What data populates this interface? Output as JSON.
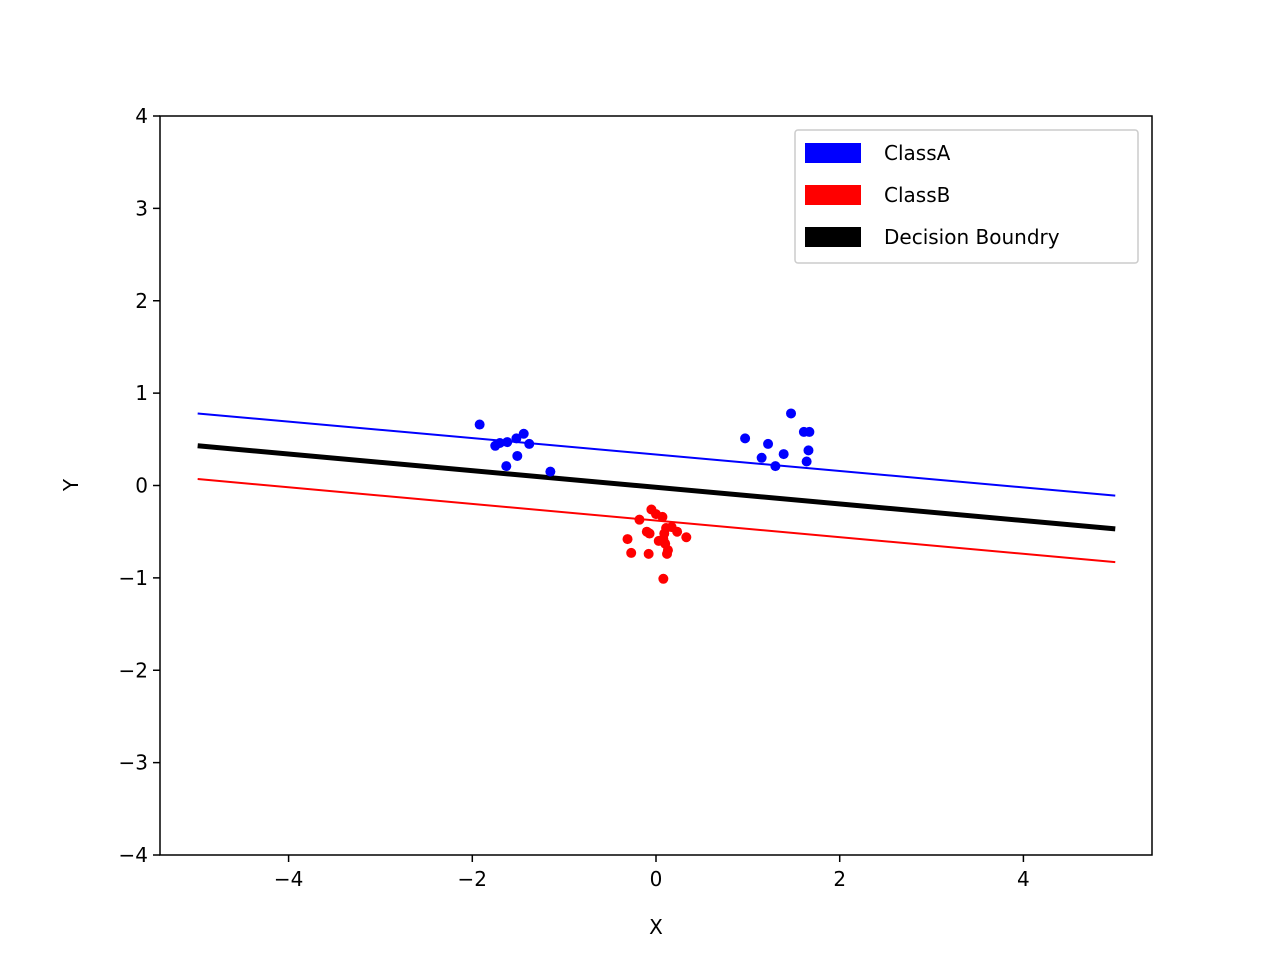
{
  "chart_data": {
    "type": "scatter",
    "xlabel": "X",
    "ylabel": "Y",
    "xlim": [
      -5.4,
      5.4
    ],
    "ylim": [
      -4,
      4
    ],
    "xticks": [
      -4,
      -2,
      0,
      2,
      4
    ],
    "yticks": [
      -4,
      -3,
      -2,
      -1,
      0,
      1,
      2,
      3,
      4
    ],
    "xtick_labels": [
      "−4",
      "−2",
      "0",
      "2",
      "4"
    ],
    "ytick_labels": [
      "−4",
      "−3",
      "−2",
      "−1",
      "0",
      "1",
      "2",
      "3",
      "4"
    ],
    "grid": false,
    "legend_position": "top-right",
    "legend": [
      {
        "label": "ClassA",
        "color": "#0000ff"
      },
      {
        "label": "ClassB",
        "color": "#ff0000"
      },
      {
        "label": "Decision Boundry",
        "color": "#000000"
      }
    ],
    "lines": [
      {
        "name": "ClassA",
        "color": "#0000ff",
        "width": "thin",
        "points": [
          [
            -4.99,
            0.78
          ],
          [
            5.0,
            -0.11
          ]
        ]
      },
      {
        "name": "Decision Boundry",
        "color": "#000000",
        "width": "thick",
        "points": [
          [
            -4.99,
            0.43
          ],
          [
            5.0,
            -0.47
          ]
        ]
      },
      {
        "name": "ClassB",
        "color": "#ff0000",
        "width": "thin",
        "points": [
          [
            -4.99,
            0.07
          ],
          [
            5.0,
            -0.83
          ]
        ]
      }
    ],
    "series": [
      {
        "name": "ClassA",
        "color": "#0000ff",
        "points": [
          [
            -1.92,
            0.66
          ],
          [
            -1.75,
            0.43
          ],
          [
            -1.7,
            0.46
          ],
          [
            -1.62,
            0.47
          ],
          [
            -1.63,
            0.21
          ],
          [
            -1.52,
            0.51
          ],
          [
            -1.51,
            0.32
          ],
          [
            -1.44,
            0.56
          ],
          [
            -1.38,
            0.45
          ],
          [
            -1.15,
            0.15
          ],
          [
            0.97,
            0.51
          ],
          [
            1.15,
            0.3
          ],
          [
            1.22,
            0.45
          ],
          [
            1.3,
            0.21
          ],
          [
            1.39,
            0.34
          ],
          [
            1.47,
            0.78
          ],
          [
            1.61,
            0.58
          ],
          [
            1.67,
            0.58
          ],
          [
            1.66,
            0.38
          ],
          [
            1.64,
            0.26
          ]
        ]
      },
      {
        "name": "ClassB",
        "color": "#ff0000",
        "points": [
          [
            -0.05,
            -0.26
          ],
          [
            0.0,
            -0.31
          ],
          [
            0.07,
            -0.34
          ],
          [
            -0.18,
            -0.37
          ],
          [
            0.11,
            -0.46
          ],
          [
            0.17,
            -0.45
          ],
          [
            0.23,
            -0.5
          ],
          [
            -0.1,
            -0.5
          ],
          [
            -0.07,
            -0.52
          ],
          [
            0.09,
            -0.52
          ],
          [
            0.08,
            -0.58
          ],
          [
            0.33,
            -0.56
          ],
          [
            0.03,
            -0.6
          ],
          [
            -0.31,
            -0.58
          ],
          [
            0.1,
            -0.63
          ],
          [
            0.13,
            -0.7
          ],
          [
            0.12,
            -0.74
          ],
          [
            -0.27,
            -0.73
          ],
          [
            -0.08,
            -0.74
          ],
          [
            0.08,
            -1.01
          ]
        ]
      }
    ]
  }
}
